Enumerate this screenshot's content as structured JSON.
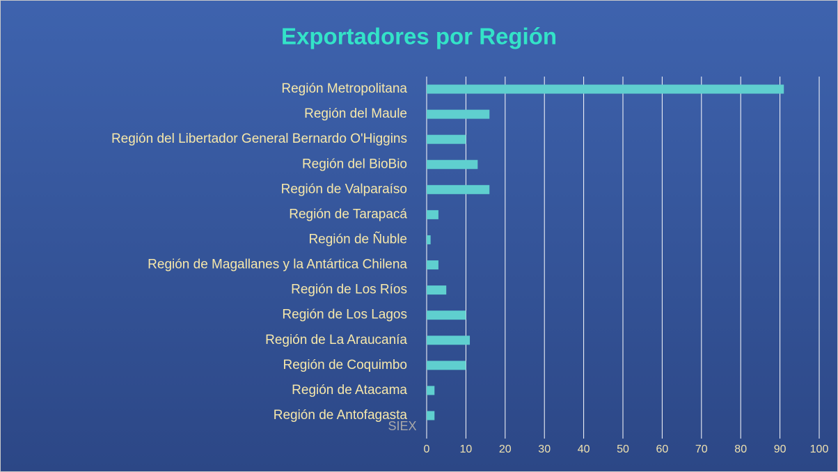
{
  "chart_data": {
    "type": "bar",
    "orientation": "horizontal",
    "title": "Exportadores por Región",
    "source": "SIEX",
    "categories": [
      "Región Metropolitana",
      "Región del Maule",
      "Región del Libertador General Bernardo O'Higgins",
      "Región del BioBio",
      "Región de Valparaíso",
      "Región de Tarapacá",
      "Región de Ñuble",
      "Región de Magallanes y la Antártica Chilena",
      "Región de Los Ríos",
      "Región de Los Lagos",
      "Región de La Araucanía",
      "Región de Coquimbo",
      "Región de Atacama",
      "Región de Antofagasta"
    ],
    "values": [
      91,
      16,
      10,
      13,
      16,
      3,
      1,
      3,
      5,
      10,
      11,
      10,
      2,
      2
    ],
    "color": "#5fcfcf",
    "xlim": [
      0,
      100
    ],
    "xticks": [
      0,
      10,
      20,
      30,
      40,
      50,
      60,
      70,
      80,
      90,
      100
    ],
    "grid": true
  }
}
